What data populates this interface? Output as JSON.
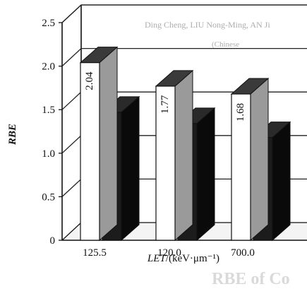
{
  "chart_data": {
    "type": "bar",
    "style": "3d",
    "categories": [
      "125.5",
      "120.0",
      "700.0"
    ],
    "series": [
      {
        "values": [
          2.04,
          1.77,
          1.68
        ],
        "color": "#ffffff"
      },
      {
        "values": [
          1.47,
          1.34,
          1.18
        ],
        "color": "#1c1c1c"
      }
    ],
    "ylabel": "RBE",
    "xlabel_italic": "LET",
    "xlabel_rest": "/(keV·μm⁻¹)",
    "ylim": [
      0,
      2.5
    ],
    "yticks": [
      "0",
      "0.5",
      "1.0",
      "1.5",
      "2.0",
      "2.5"
    ],
    "grid": true
  },
  "bleed_through": [
    "Ding Cheng, LIU Nong-Ming, AN Ji",
    "(Chinese",
    "RBE of Co"
  ]
}
